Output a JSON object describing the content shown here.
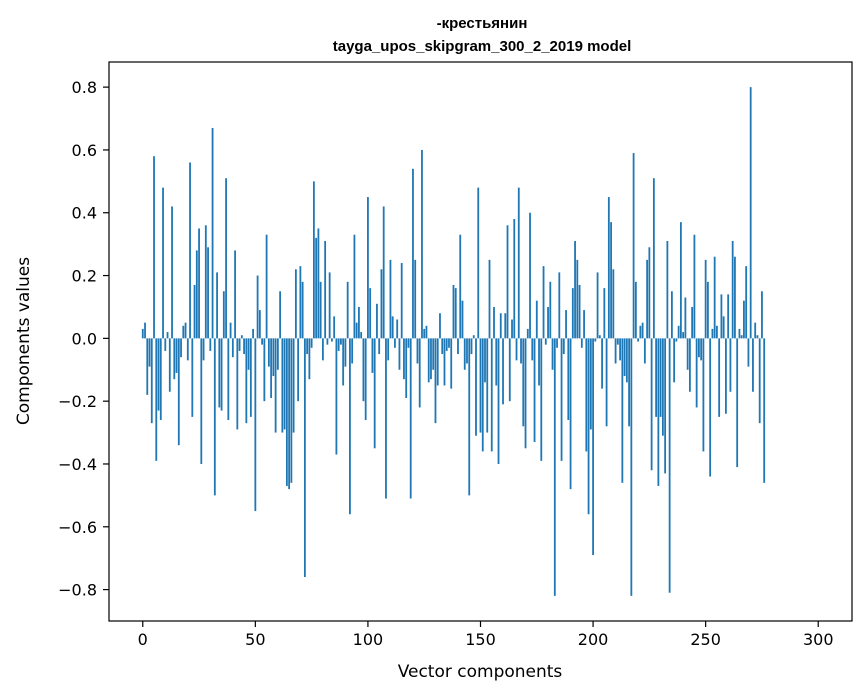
{
  "chart_data": {
    "type": "bar",
    "title_line1": "-крестьянин",
    "title_line2": "tayga_upos_skipgram_300_2_2019 model",
    "xlabel": "Vector components",
    "ylabel": "Components values",
    "xlim": [
      -15,
      315
    ],
    "ylim": [
      -0.9,
      0.88
    ],
    "x_ticks": [
      0,
      50,
      100,
      150,
      200,
      250,
      300
    ],
    "x_tick_labels": [
      "0",
      "50",
      "100",
      "150",
      "200",
      "250",
      "300"
    ],
    "y_ticks": [
      -0.8,
      -0.6,
      -0.4,
      -0.2,
      0.0,
      0.2,
      0.4,
      0.6,
      0.8
    ],
    "y_tick_labels": [
      "−0.8",
      "−0.6",
      "−0.4",
      "−0.2",
      "0.0",
      "0.2",
      "0.4",
      "0.6",
      "0.8"
    ],
    "grid": false,
    "bar_color": "#1f77b4",
    "values": [
      0.03,
      0.05,
      -0.18,
      -0.09,
      -0.27,
      0.58,
      -0.39,
      -0.23,
      -0.26,
      0.48,
      -0.04,
      0.02,
      -0.17,
      0.42,
      -0.13,
      -0.11,
      -0.34,
      -0.06,
      0.04,
      0.05,
      -0.07,
      0.56,
      -0.25,
      0.17,
      0.28,
      0.35,
      -0.4,
      -0.07,
      0.36,
      0.29,
      -0.04,
      0.67,
      -0.5,
      0.21,
      -0.22,
      -0.23,
      0.15,
      0.51,
      -0.26,
      0.05,
      -0.06,
      0.28,
      -0.29,
      -0.04,
      0.01,
      -0.05,
      -0.27,
      -0.1,
      -0.25,
      0.03,
      -0.55,
      0.2,
      0.09,
      -0.02,
      -0.2,
      0.33,
      -0.09,
      -0.19,
      -0.12,
      -0.3,
      -0.1,
      0.15,
      -0.3,
      -0.29,
      -0.47,
      -0.48,
      -0.46,
      -0.3,
      0.22,
      -0.2,
      0.23,
      0.18,
      -0.76,
      -0.05,
      -0.13,
      -0.03,
      0.5,
      0.32,
      0.35,
      0.18,
      -0.07,
      0.31,
      -0.02,
      0.21,
      -0.01,
      0.07,
      -0.37,
      -0.04,
      -0.02,
      -0.15,
      -0.09,
      0.18,
      -0.56,
      -0.08,
      0.33,
      0.05,
      0.1,
      0.02,
      -0.2,
      -0.26,
      0.45,
      0.16,
      -0.11,
      -0.35,
      0.11,
      -0.05,
      0.22,
      0.42,
      -0.51,
      -0.07,
      0.25,
      0.07,
      -0.03,
      0.06,
      -0.1,
      0.24,
      -0.13,
      -0.19,
      -0.03,
      -0.51,
      0.54,
      0.25,
      -0.08,
      -0.22,
      0.6,
      0.03,
      0.04,
      -0.14,
      -0.13,
      -0.1,
      -0.27,
      -0.15,
      0.08,
      -0.05,
      -0.15,
      -0.04,
      -0.03,
      -0.16,
      0.17,
      0.16,
      -0.05,
      0.33,
      0.12,
      -0.1,
      -0.08,
      -0.5,
      -0.05,
      0.01,
      -0.31,
      0.48,
      -0.3,
      -0.36,
      -0.14,
      -0.3,
      0.25,
      -0.36,
      0.1,
      -0.15,
      -0.4,
      0.08,
      -0.21,
      0.08,
      0.36,
      -0.2,
      0.06,
      0.38,
      -0.07,
      0.48,
      -0.08,
      -0.28,
      -0.35,
      0.03,
      0.4,
      -0.07,
      -0.33,
      0.12,
      -0.15,
      -0.39,
      0.23,
      -0.02,
      0.1,
      0.18,
      -0.1,
      -0.82,
      -0.03,
      0.21,
      -0.39,
      -0.05,
      0.09,
      -0.26,
      -0.48,
      0.16,
      0.31,
      0.25,
      0.17,
      -0.03,
      0.09,
      -0.36,
      -0.56,
      -0.29,
      -0.69,
      -0.01,
      0.21,
      0.01,
      -0.16,
      0.16,
      -0.28,
      0.45,
      0.37,
      0.22,
      -0.08,
      -0.02,
      -0.07,
      -0.46,
      -0.12,
      -0.14,
      -0.28,
      -0.82,
      0.59,
      0.18,
      -0.01,
      0.04,
      0.05,
      -0.08,
      0.25,
      0.29,
      -0.42,
      0.51,
      -0.25,
      -0.47,
      -0.25,
      -0.31,
      -0.43,
      0.31,
      -0.81,
      0.15,
      -0.14,
      -0.01,
      0.04,
      0.37,
      0.02,
      0.13,
      -0.1,
      -0.17,
      0.1,
      0.33,
      -0.22,
      -0.06,
      -0.07,
      -0.36,
      0.25,
      0.18,
      -0.44,
      0.03,
      0.26,
      0.04,
      -0.25,
      0.14,
      0.07,
      -0.24,
      0.14,
      -0.17,
      0.31,
      0.26,
      -0.41,
      0.03,
      0.01,
      0.12,
      0.23,
      -0.09,
      0.8,
      -0.17,
      0.05,
      0.01,
      -0.27,
      0.15,
      -0.46
    ]
  }
}
